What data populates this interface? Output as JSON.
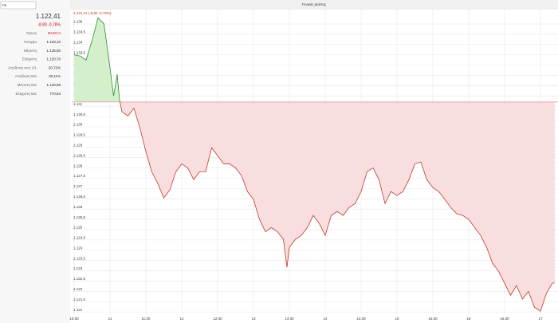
{
  "search": "ΓΔ",
  "quote": {
    "price": "1.122,41",
    "change": "-8,80 -0,78%",
    "stats": [
      {
        "label": "Όγκος",
        "value": "20,83 m"
      },
      {
        "label": "Άνοιγμα",
        "value": "1.133,10"
      },
      {
        "label": "Μέγιστη",
        "value": "1.135,50"
      },
      {
        "label": "Ελάχιστη",
        "value": "1.120,70"
      },
      {
        "label": "Απόδοση από 1/1",
        "value": "20,72%"
      },
      {
        "label": "Απόδοση 52ε",
        "value": "30,11%"
      },
      {
        "label": "Μέγιστη 52ε",
        "value": "1.140,96"
      },
      {
        "label": "Ελάχιστη 52ε",
        "value": "770,84"
      }
    ]
  },
  "chart_data": {
    "type": "line",
    "title": "Γενικός Δείκτης",
    "legend_text": "1.122,41 (-8,80 -0,78%)",
    "baseline": 1131.21,
    "up_color": "#2e8b2e",
    "up_fill": "#d3efcc",
    "down_color": "#c0392b",
    "down_fill": "#f8dede",
    "x": [
      630,
      635,
      640,
      645,
      650,
      655,
      660,
      663,
      666,
      668,
      670,
      675,
      680,
      685,
      690,
      695,
      700,
      705,
      710,
      715,
      720,
      725,
      730,
      735,
      740,
      745,
      750,
      755,
      760,
      765,
      770,
      775,
      780,
      785,
      790,
      795,
      800,
      805,
      808,
      810,
      815,
      820,
      825,
      830,
      835,
      840,
      845,
      850,
      855,
      860,
      865,
      870,
      875,
      880,
      885,
      890,
      895,
      900,
      905,
      910,
      915,
      920,
      925,
      930,
      935,
      940,
      945,
      950,
      955,
      960,
      965,
      970,
      975,
      980,
      985,
      990,
      995,
      1000,
      1005,
      1010,
      1015,
      1020,
      1025,
      1030,
      1032
    ],
    "values": [
      1133.5,
      1133.44,
      1133.25,
      1134.2,
      1135.3,
      1135.0,
      1132.86,
      1131.5,
      1132.55,
      1131.3,
      1130.73,
      1130.53,
      1130.9,
      1129.95,
      1128.8,
      1127.8,
      1127.24,
      1126.54,
      1126.93,
      1127.8,
      1128.2,
      1128.0,
      1127.43,
      1127.82,
      1127.82,
      1128.98,
      1128.6,
      1128.2,
      1128.2,
      1128.0,
      1127.63,
      1126.85,
      1126.47,
      1125.5,
      1124.9,
      1125.1,
      1124.9,
      1124.53,
      1123.17,
      1124.14,
      1124.53,
      1124.72,
      1125.1,
      1125.69,
      1125.3,
      1124.72,
      1125.69,
      1125.88,
      1125.69,
      1126.08,
      1126.27,
      1126.85,
      1127.82,
      1128.0,
      1127.43,
      1126.27,
      1126.85,
      1126.66,
      1126.85,
      1127.43,
      1128.2,
      1128.29,
      1127.43,
      1127.05,
      1126.85,
      1126.47,
      1126.08,
      1125.77,
      1125.69,
      1125.5,
      1125.1,
      1124.72,
      1124.14,
      1123.36,
      1122.98,
      1122.4,
      1121.81,
      1122.28,
      1121.62,
      1122.0,
      1121.23,
      1121.04,
      1121.9,
      1122.4,
      1122.41
    ],
    "xlim": [
      628,
      1034.7
    ],
    "xticks": [
      {
        "value": 630,
        "label": "10:30"
      },
      {
        "value": 660,
        "label": "11"
      },
      {
        "value": 690,
        "label": "11:30"
      },
      {
        "value": 720,
        "label": "12"
      },
      {
        "value": 750,
        "label": "12:30"
      },
      {
        "value": 780,
        "label": "13"
      },
      {
        "value": 810,
        "label": "13:30"
      },
      {
        "value": 840,
        "label": "14"
      },
      {
        "value": 870,
        "label": "14:30"
      },
      {
        "value": 900,
        "label": "15"
      },
      {
        "value": 930,
        "label": "15:30"
      },
      {
        "value": 960,
        "label": "16"
      },
      {
        "value": 990,
        "label": "16:30"
      },
      {
        "value": 1020,
        "label": "17"
      }
    ],
    "ylim": [
      1120.85,
      1135.7
    ],
    "yticks": [
      {
        "value": 1121,
        "label": "1.121"
      },
      {
        "value": 1121.5,
        "label": "1.121,5"
      },
      {
        "value": 1122,
        "label": "1.122"
      },
      {
        "value": 1122.5,
        "label": "1.122,5"
      },
      {
        "value": 1123,
        "label": "1.123"
      },
      {
        "value": 1123.5,
        "label": "1.123,5"
      },
      {
        "value": 1124,
        "label": "1.124"
      },
      {
        "value": 1124.5,
        "label": "1.124,5"
      },
      {
        "value": 1125,
        "label": "1.125"
      },
      {
        "value": 1125.5,
        "label": "1.125,5"
      },
      {
        "value": 1126,
        "label": "1.126"
      },
      {
        "value": 1126.5,
        "label": "1.126,5"
      },
      {
        "value": 1127,
        "label": "1.127"
      },
      {
        "value": 1127.5,
        "label": "1.127,5"
      },
      {
        "value": 1128,
        "label": "1.128"
      },
      {
        "value": 1128.5,
        "label": "1.128,5"
      },
      {
        "value": 1129,
        "label": "1.129"
      },
      {
        "value": 1129.5,
        "label": "1.129,5"
      },
      {
        "value": 1130,
        "label": "1.130"
      },
      {
        "value": 1130.5,
        "label": "1.130,5"
      },
      {
        "value": 1131,
        "label": "1.131"
      },
      {
        "value": 1131.5,
        "label": "1.131,5"
      },
      {
        "value": 1132,
        "label": "1.132"
      },
      {
        "value": 1132.5,
        "label": "1.132,5"
      },
      {
        "value": 1133,
        "label": "1.133"
      },
      {
        "value": 1133.5,
        "label": "1.133,5"
      },
      {
        "value": 1134,
        "label": "1.134"
      },
      {
        "value": 1134.5,
        "label": "1.134,5"
      },
      {
        "value": 1135,
        "label": "1.135"
      }
    ],
    "grid": true
  }
}
